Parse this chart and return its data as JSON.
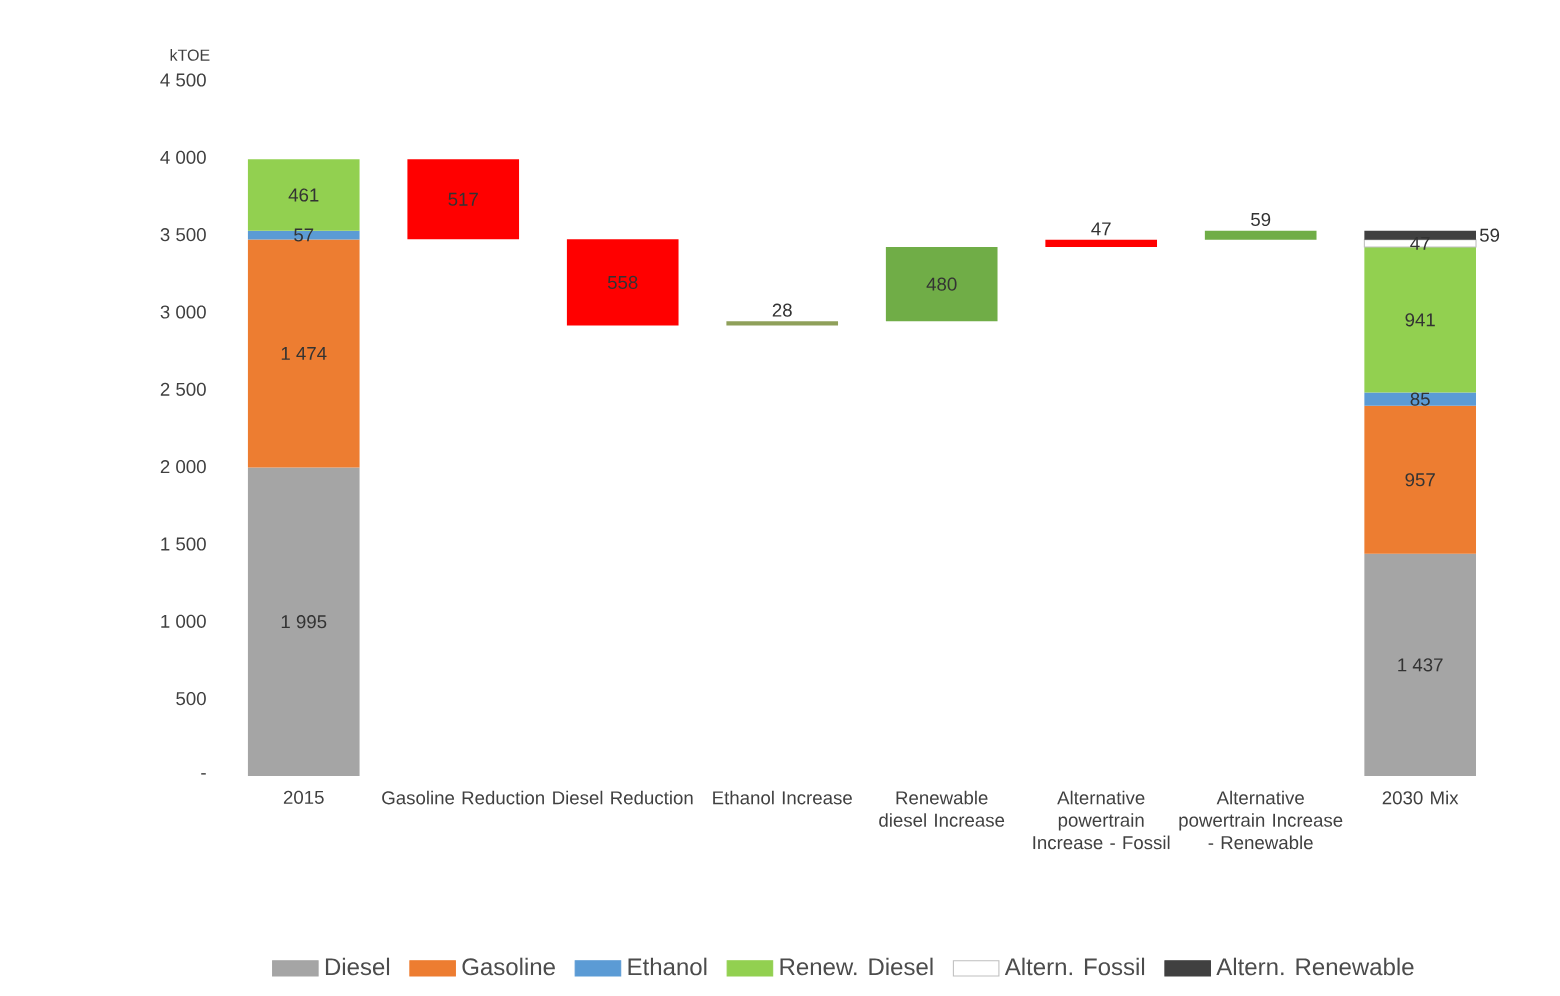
{
  "chart_data": {
    "type": "bar",
    "ylabel": "kTOE",
    "stacked": true,
    "legend": "bottom",
    "categories": [
      "2015",
      "Gasoline Reduction",
      "Diesel Reduction",
      "Ethanol Increase",
      "Renewable diesel Increase",
      "Alternative powertrain Increase - Fossil",
      "Alternative powertrain Increase - Renewable",
      "2030 Mix"
    ],
    "ylim": [
      0,
      4500
    ],
    "yticks": [
      {
        "value": 0,
        "label": "-"
      },
      {
        "value": 500,
        "label": "500"
      },
      {
        "value": 1000,
        "label": "1 000"
      },
      {
        "value": 1500,
        "label": "1 500"
      },
      {
        "value": 2000,
        "label": "2 000"
      },
      {
        "value": 2500,
        "label": "2 500"
      },
      {
        "value": 3000,
        "label": "3 000"
      },
      {
        "value": 3500,
        "label": "3 500"
      },
      {
        "value": 4000,
        "label": "4 000"
      },
      {
        "value": 4500,
        "label": "4 500"
      }
    ],
    "series": [
      {
        "name": "Diesel",
        "color": "#a5a5a5",
        "values": [
          1995,
          null,
          null,
          null,
          null,
          null,
          null,
          1437
        ],
        "value_labels": [
          "1 995",
          null,
          null,
          null,
          null,
          null,
          null,
          "1 437"
        ]
      },
      {
        "name": "Gasoline",
        "color": "#ed7d31",
        "values": [
          1474,
          null,
          null,
          null,
          null,
          null,
          null,
          957
        ],
        "value_labels": [
          "1 474",
          null,
          null,
          null,
          null,
          null,
          null,
          "957"
        ]
      },
      {
        "name": "Ethanol",
        "color": "#5b9bd5",
        "values": [
          57,
          null,
          null,
          null,
          null,
          null,
          null,
          85
        ],
        "value_labels": [
          "57",
          null,
          null,
          null,
          null,
          null,
          null,
          "85"
        ]
      },
      {
        "name": "Renew. Diesel",
        "color": "#92d050",
        "values": [
          461,
          null,
          null,
          null,
          null,
          null,
          null,
          941
        ],
        "value_labels": [
          "461",
          null,
          null,
          null,
          null,
          null,
          null,
          "941"
        ]
      },
      {
        "name": "Altern. Fossil",
        "color": "#ffffff",
        "values": [
          null,
          null,
          null,
          null,
          null,
          null,
          null,
          47
        ],
        "value_labels": [
          null,
          null,
          null,
          null,
          null,
          null,
          null,
          "47"
        ]
      },
      {
        "name": "Altern. Renewable",
        "color": "#404040",
        "values": [
          null,
          null,
          null,
          null,
          null,
          null,
          null,
          59
        ],
        "value_labels": [
          null,
          null,
          null,
          null,
          null,
          null,
          null,
          "59"
        ]
      },
      {
        "colors": [
          null,
          "#ff0000",
          "#ff0000",
          "#8fa05a",
          "#70ad47",
          "#ff0000",
          "#70ad47",
          null
        ],
        "values": [
          null,
          517,
          558,
          28,
          480,
          47,
          59,
          null
        ],
        "base": [
          null,
          3470,
          2912,
          2912,
          2940,
          3420,
          3467,
          null
        ],
        "value_labels": [
          null,
          "517",
          "558",
          "28",
          "480",
          "47",
          "59",
          null
        ]
      }
    ]
  }
}
